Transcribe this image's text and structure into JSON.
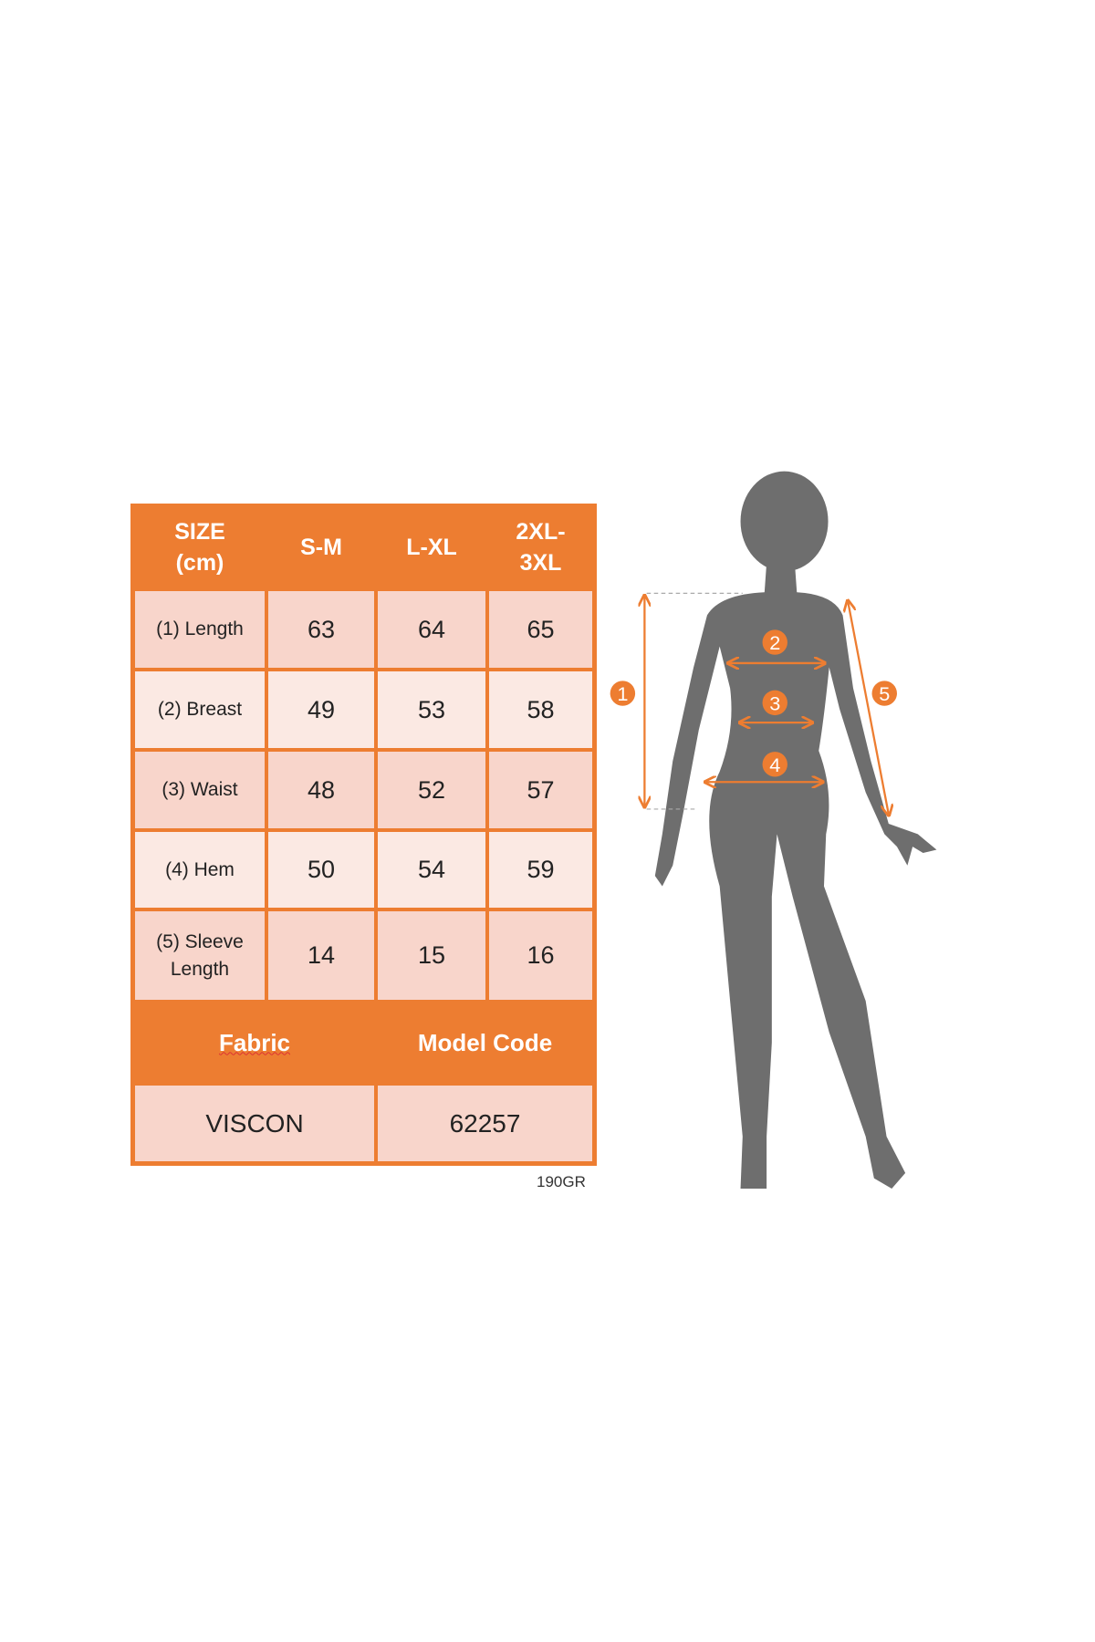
{
  "size_table": {
    "headers": [
      "SIZE\n(cm)",
      "S-M",
      "L-XL",
      "2XL-\n3XL"
    ],
    "rows": [
      {
        "label": "(1) Length",
        "values": [
          "63",
          "64",
          "65"
        ]
      },
      {
        "label": "(2) Breast",
        "values": [
          "49",
          "53",
          "58"
        ]
      },
      {
        "label": "(3) Waist",
        "values": [
          "48",
          "52",
          "57"
        ]
      },
      {
        "label": "(4) Hem",
        "values": [
          "50",
          "54",
          "59"
        ]
      },
      {
        "label": "(5) Sleeve\nLength",
        "values": [
          "14",
          "15",
          "16"
        ]
      }
    ]
  },
  "info_table": {
    "fabric_label": "Fabric",
    "model_code_label": "Model Code",
    "fabric_value": "VISCON",
    "model_code_value": "62257"
  },
  "weight": "190GR",
  "figure": {
    "markers": [
      "1",
      "2",
      "3",
      "4",
      "5"
    ]
  },
  "colors": {
    "accent": "#ED7D31",
    "cell_dark": "#F8D5CB",
    "cell_light": "#FBE9E3",
    "silhouette": "#6E6E6E"
  }
}
